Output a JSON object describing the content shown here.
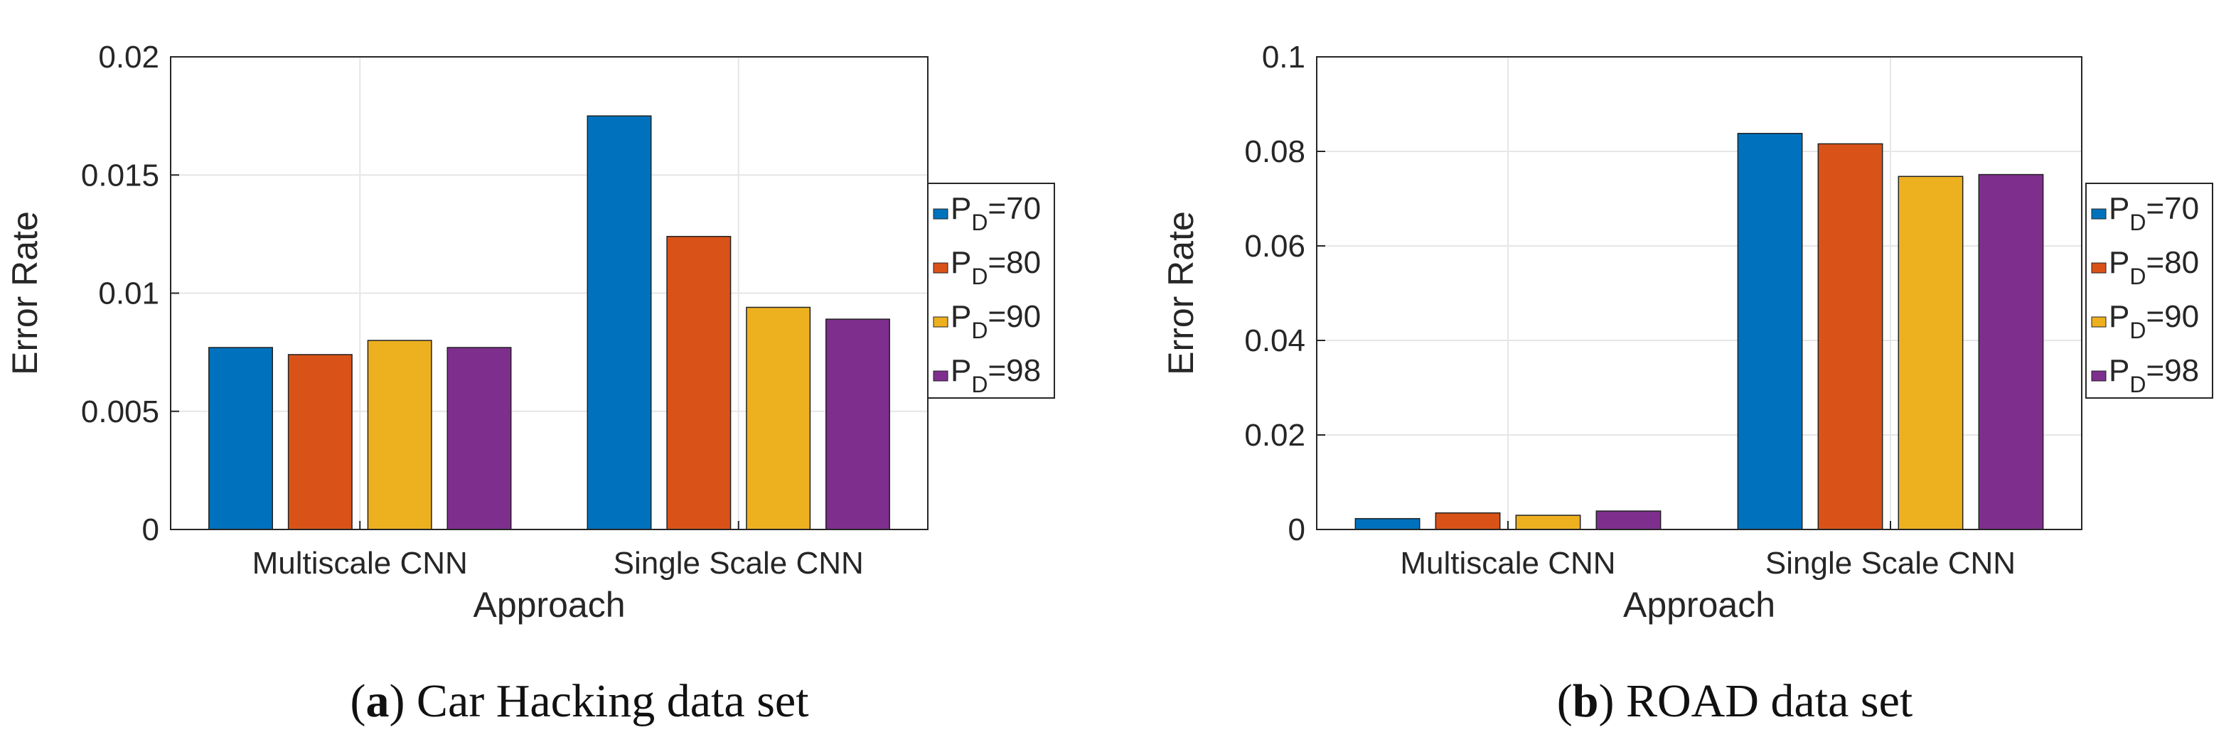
{
  "chart_data": [
    {
      "type": "bar",
      "title": "",
      "caption": {
        "letter": "a",
        "text": "Car Hacking data set"
      },
      "xlabel": "Approach",
      "ylabel": "Error Rate",
      "categories": [
        "Multiscale CNN",
        "Single Scale CNN"
      ],
      "ylim": [
        0,
        0.02
      ],
      "yticks": [
        0,
        0.005,
        0.01,
        0.015,
        0.02
      ],
      "ytick_labels": [
        "0",
        "0.005",
        "0.01",
        "0.015",
        "0.02"
      ],
      "grid": true,
      "legend_position": "outside-right",
      "series": [
        {
          "name": "PD=70",
          "label_main": "P",
          "label_sub": "D",
          "label_rest": "=70",
          "color": "#0072BD",
          "values": [
            0.0077,
            0.0175
          ]
        },
        {
          "name": "PD=80",
          "label_main": "P",
          "label_sub": "D",
          "label_rest": "=80",
          "color": "#D95319",
          "values": [
            0.0074,
            0.0124
          ]
        },
        {
          "name": "PD=90",
          "label_main": "P",
          "label_sub": "D",
          "label_rest": "=90",
          "color": "#EDB120",
          "values": [
            0.008,
            0.0094
          ]
        },
        {
          "name": "PD=98",
          "label_main": "P",
          "label_sub": "D",
          "label_rest": "=98",
          "color": "#7E2F8E",
          "values": [
            0.0077,
            0.0089
          ]
        }
      ]
    },
    {
      "type": "bar",
      "title": "",
      "caption": {
        "letter": "b",
        "text": "ROAD data set"
      },
      "xlabel": "Approach",
      "ylabel": "Error Rate",
      "categories": [
        "Multiscale CNN",
        "Single Scale CNN"
      ],
      "ylim": [
        0,
        0.1
      ],
      "yticks": [
        0,
        0.02,
        0.04,
        0.06,
        0.08,
        0.1
      ],
      "ytick_labels": [
        "0",
        "0.02",
        "0.04",
        "0.06",
        "0.08",
        "0.1"
      ],
      "grid": true,
      "legend_position": "outside-right",
      "series": [
        {
          "name": "PD=70",
          "label_main": "P",
          "label_sub": "D",
          "label_rest": "=70",
          "color": "#0072BD",
          "values": [
            0.0023,
            0.0838
          ]
        },
        {
          "name": "PD=80",
          "label_main": "P",
          "label_sub": "D",
          "label_rest": "=80",
          "color": "#D95319",
          "values": [
            0.0035,
            0.0816
          ]
        },
        {
          "name": "PD=90",
          "label_main": "P",
          "label_sub": "D",
          "label_rest": "=90",
          "color": "#EDB120",
          "values": [
            0.003,
            0.0747
          ]
        },
        {
          "name": "PD=98",
          "label_main": "P",
          "label_sub": "D",
          "label_rest": "=98",
          "color": "#7E2F8E",
          "values": [
            0.0039,
            0.0751
          ]
        }
      ]
    }
  ]
}
